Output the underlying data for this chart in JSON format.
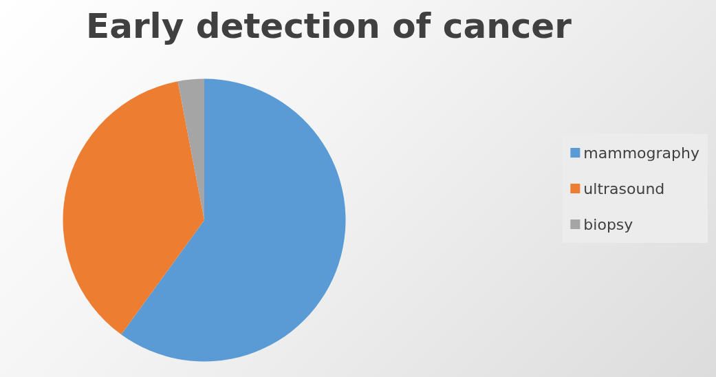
{
  "chart_data": {
    "type": "pie",
    "title": "Early detection of cancer",
    "categories": [
      "mammography",
      "ultrasound",
      "biopsy"
    ],
    "values": [
      60,
      37,
      3
    ],
    "colors": [
      "#5b9bd5",
      "#ed7d31",
      "#a5a5a5"
    ],
    "legend": "right"
  }
}
